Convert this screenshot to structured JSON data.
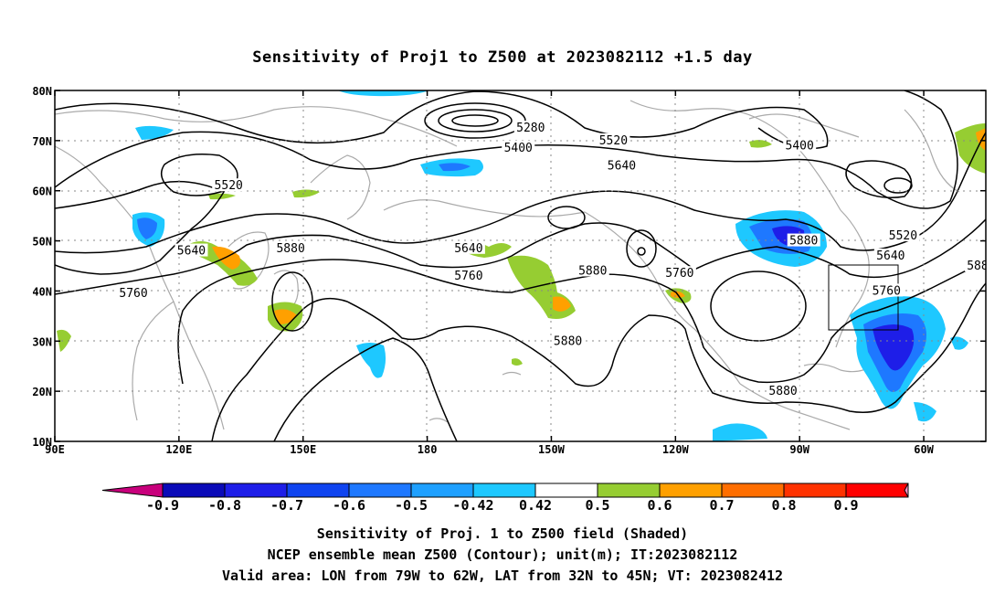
{
  "title": "Sensitivity of Proj1 to Z500 at 2023082112 +1.5 day",
  "map": {
    "lon_ticks": [
      "90E",
      "120E",
      "150E",
      "180",
      "150W",
      "120W",
      "90W",
      "60W"
    ],
    "lat_ticks": [
      "80N",
      "70N",
      "60N",
      "50N",
      "40N",
      "30N",
      "20N",
      "10N"
    ],
    "lon_range_deg_east": [
      90,
      315
    ],
    "lat_range": [
      10,
      80
    ],
    "gridlines": "dotted",
    "contour_labels": [
      {
        "text": "5280",
        "lon": 205,
        "lat": 72.5
      },
      {
        "text": "5400",
        "lon": 202,
        "lat": 68.5
      },
      {
        "text": "5520",
        "lon": 132,
        "lat": 61
      },
      {
        "text": "5520",
        "lon": 225,
        "lat": 70
      },
      {
        "text": "5640",
        "lon": 227,
        "lat": 65
      },
      {
        "text": "5400",
        "lon": 270,
        "lat": 69
      },
      {
        "text": "5520",
        "lon": 295,
        "lat": 51
      },
      {
        "text": "5640",
        "lon": 123,
        "lat": 48
      },
      {
        "text": "5880",
        "lon": 147,
        "lat": 48.5
      },
      {
        "text": "5640",
        "lon": 190,
        "lat": 48.5
      },
      {
        "text": "5760",
        "lon": 190,
        "lat": 43
      },
      {
        "text": "5880",
        "lon": 220,
        "lat": 44
      },
      {
        "text": "5760",
        "lon": 241,
        "lat": 43.5
      },
      {
        "text": "5880",
        "lon": 271,
        "lat": 50
      },
      {
        "text": "5640",
        "lon": 292,
        "lat": 47
      },
      {
        "text": "5760",
        "lon": 291,
        "lat": 40
      },
      {
        "text": "588",
        "lon": 313,
        "lat": 45
      },
      {
        "text": "5760",
        "lon": 109,
        "lat": 39.5
      },
      {
        "text": "5880",
        "lon": 214,
        "lat": 30
      },
      {
        "text": "5880",
        "lon": 266,
        "lat": 20
      }
    ],
    "valid_box": {
      "lon_west": 79,
      "lon_east": 62,
      "lat_south": 32,
      "lat_north": 45
    }
  },
  "colorbar": {
    "labels": [
      "-0.9",
      "-0.8",
      "-0.7",
      "-0.6",
      "-0.5",
      "-0.42",
      "0.42",
      "0.5",
      "0.6",
      "0.7",
      "0.8",
      "0.9"
    ],
    "colors": [
      "#c8007c",
      "#0a0ab8",
      "#1e1ee8",
      "#0f44f0",
      "#1e78ff",
      "#1ea0ff",
      "#1ec8ff",
      "#ffffff",
      "#96cd32",
      "#ffa000",
      "#ff6e00",
      "#ff3200",
      "#ff0000",
      "#ff96c8"
    ]
  },
  "captions": [
    "Sensitivity of Proj. 1 to Z500 field (Shaded)",
    "NCEP ensemble mean Z500 (Contour); unit(m); IT:2023082112",
    "Valid area: LON from 79W to 62W, LAT from 32N to 45N; VT: 2023082412"
  ]
}
